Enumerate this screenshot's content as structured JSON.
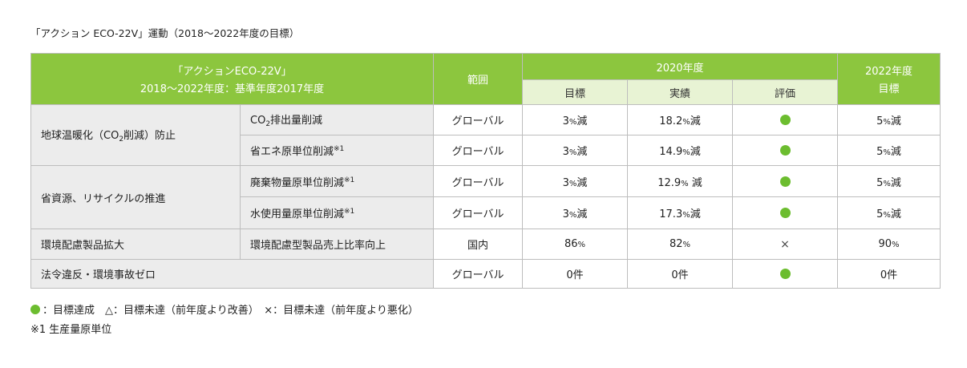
{
  "caption": "「アクション ECO-22V」運動（2018〜2022年度の目標）",
  "header": {
    "title_line1": "「アクションECO-22V」",
    "title_line2": "2018〜2022年度：基準年度2017年度",
    "range": "範囲",
    "year2020": "2020年度",
    "target": "目標",
    "actual": "実績",
    "evaluation": "評価",
    "year2022_line1": "2022年度",
    "year2022_line2": "目標"
  },
  "rows": [
    {
      "category_pre": "地球温暖化（CO",
      "category_sub": "2",
      "category_post": "削減）防止",
      "item_pre": "CO",
      "item_sub": "2",
      "item_post": "排出量削減",
      "range": "グローバル",
      "target_num": "3",
      "target_unit": "%",
      "target_suffix": "減",
      "actual_num": "18.2",
      "actual_unit": "%",
      "actual_suffix": "減",
      "evaluation": "achieved",
      "goal_num": "5",
      "goal_unit": "%",
      "goal_suffix": "減"
    },
    {
      "item": "省エネ原単位削減",
      "item_note": "※1",
      "range": "グローバル",
      "target_num": "3",
      "target_unit": "%",
      "target_suffix": "減",
      "actual_num": "14.9",
      "actual_unit": "%",
      "actual_suffix": "減",
      "evaluation": "achieved",
      "goal_num": "5",
      "goal_unit": "%",
      "goal_suffix": "減"
    },
    {
      "category": "省資源、リサイクルの推進",
      "item": "廃棄物量原単位削減",
      "item_note": "※1",
      "range": "グローバル",
      "target_num": "3",
      "target_unit": "%",
      "target_suffix": "減",
      "actual_num": "12.9",
      "actual_unit": "%",
      "actual_suffix": " 減",
      "evaluation": "achieved",
      "goal_num": "5",
      "goal_unit": "%",
      "goal_suffix": "減"
    },
    {
      "item": "水使用量原単位削減",
      "item_note": "※1",
      "range": "グローバル",
      "target_num": "3",
      "target_unit": "%",
      "target_suffix": "減",
      "actual_num": "17.3",
      "actual_unit": "%",
      "actual_suffix": "減",
      "evaluation": "achieved",
      "goal_num": "5",
      "goal_unit": "%",
      "goal_suffix": "減"
    },
    {
      "category": "環境配慮製品拡大",
      "item": "環境配慮型製品売上比率向上",
      "range": "国内",
      "target_num": "86",
      "target_unit": "%",
      "actual_num": "82",
      "actual_unit": "%",
      "evaluation_mark": "×",
      "goal_num": "90",
      "goal_unit": "%"
    },
    {
      "category": "法令違反・環境事故ゼロ",
      "range": "グローバル",
      "target": "0件",
      "actual": "0件",
      "evaluation": "achieved",
      "goal": "0件"
    }
  ],
  "legend": {
    "achieved": "：目標達成　△：目標未達（前年度より改善）　×：目標未達（前年度より悪化）",
    "note": "※1 生産量原単位"
  },
  "colors": {
    "header_green": "#8cc63e",
    "subheader_green": "#e8f3d4",
    "achieved_dot": "#6cbd2f",
    "label_gray": "#ececec"
  }
}
